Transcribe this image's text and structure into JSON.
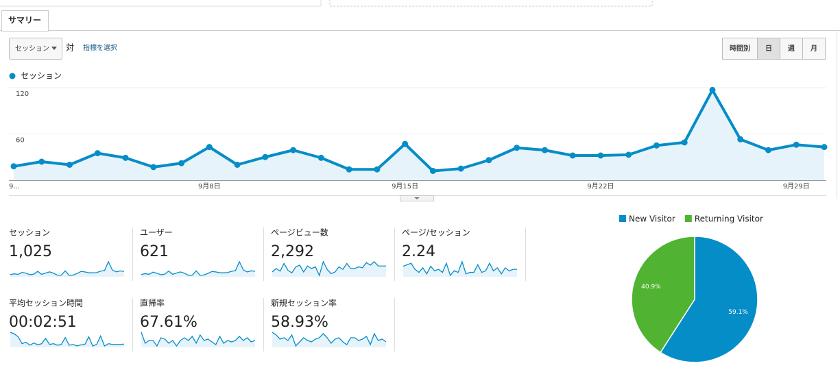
{
  "tabs": [
    "サマリー"
  ],
  "toolbar": {
    "metric": "セッション",
    "versus": "対",
    "select_metric": "指標を選択",
    "granularity": [
      "時間別",
      "日",
      "週",
      "月"
    ]
  },
  "chart_data": [
    {
      "type": "line",
      "categories": [
        "9...",
        null,
        null,
        null,
        null,
        null,
        null,
        "9月8日",
        null,
        null,
        null,
        null,
        null,
        null,
        "9月15日",
        null,
        null,
        null,
        null,
        null,
        null,
        "9月22日",
        null,
        null,
        null,
        null,
        null,
        null,
        "9月29日",
        null
      ],
      "series": [
        {
          "name": "セッション",
          "color": "#058dc7",
          "values": [
            18,
            24,
            20,
            35,
            29,
            17,
            22,
            43,
            20,
            30,
            39,
            29,
            14,
            14,
            47,
            12,
            15,
            26,
            42,
            39,
            32,
            32,
            33,
            45,
            49,
            117,
            53,
            39,
            46,
            43
          ]
        }
      ],
      "ylim": [
        0,
        120
      ],
      "yticks": [
        60,
        120
      ],
      "grid": true
    },
    {
      "type": "pie",
      "categories": [
        "New Visitor",
        "Returning Visitor"
      ],
      "values": [
        59.1,
        40.9
      ],
      "value_labels": [
        "59.1%",
        "40.9%"
      ],
      "colors": [
        "#058dc7",
        "#50b432"
      ],
      "legend": "top"
    }
  ],
  "scorecards": [
    {
      "label": "セッション",
      "value": "1,025"
    },
    {
      "label": "ユーザー",
      "value": "621",
      "sparkline": [
        11,
        15,
        12,
        22,
        17,
        10,
        13,
        27,
        12,
        18,
        23,
        17,
        8,
        8,
        28,
        7,
        9,
        16,
        25,
        23,
        19,
        19,
        20,
        26,
        29,
        70,
        32,
        23,
        28,
        26
      ]
    },
    {
      "label": "ページビュー数",
      "value": "2,292",
      "sparkline": [
        40,
        60,
        45,
        90,
        50,
        35,
        70,
        80,
        40,
        75,
        60,
        70,
        20,
        100,
        55,
        30,
        40,
        70,
        55,
        90,
        60,
        60,
        70,
        65,
        95,
        80,
        100,
        75,
        75,
        75
      ]
    },
    {
      "label": "ページ/セッション",
      "value": "2.24",
      "sparkline": [
        2.4,
        2.5,
        2.6,
        2.2,
        2.0,
        2.3,
        1.9,
        2.4,
        2.1,
        2.2,
        2.0,
        2.6,
        1.8,
        2.1,
        2.0,
        2.7,
        1.9,
        2.0,
        2.0,
        2.5,
        2.0,
        2.1,
        2.6,
        2.1,
        2.3,
        1.9,
        2.3,
        2.1,
        2.2,
        2.2
      ]
    },
    {
      "label": "平均セッション時間",
      "value": "00:02:51",
      "sparkline": [
        300,
        280,
        240,
        150,
        170,
        130,
        160,
        135,
        150,
        220,
        140,
        150,
        130,
        140,
        230,
        130,
        140,
        120,
        135,
        140,
        240,
        120,
        140,
        250,
        120,
        150,
        140,
        140,
        140,
        145
      ]
    },
    {
      "label": "直帰率",
      "value": "67.61%",
      "sparkline": [
        72,
        64,
        66,
        66,
        62,
        68,
        67,
        64,
        66,
        62,
        66,
        68,
        66,
        69,
        64,
        70,
        66,
        67,
        65,
        63,
        69,
        64,
        66,
        65,
        66,
        69,
        66,
        68,
        65,
        66
      ]
    },
    {
      "label": "新規セッション率",
      "value": "58.93%",
      "sparkline": [
        62,
        60,
        57,
        58,
        56,
        60,
        52,
        55,
        58,
        56,
        55,
        57,
        58,
        61,
        58,
        54,
        57,
        58,
        55,
        53,
        58,
        58,
        56,
        57,
        59,
        53,
        61,
        56,
        57,
        55
      ]
    }
  ]
}
